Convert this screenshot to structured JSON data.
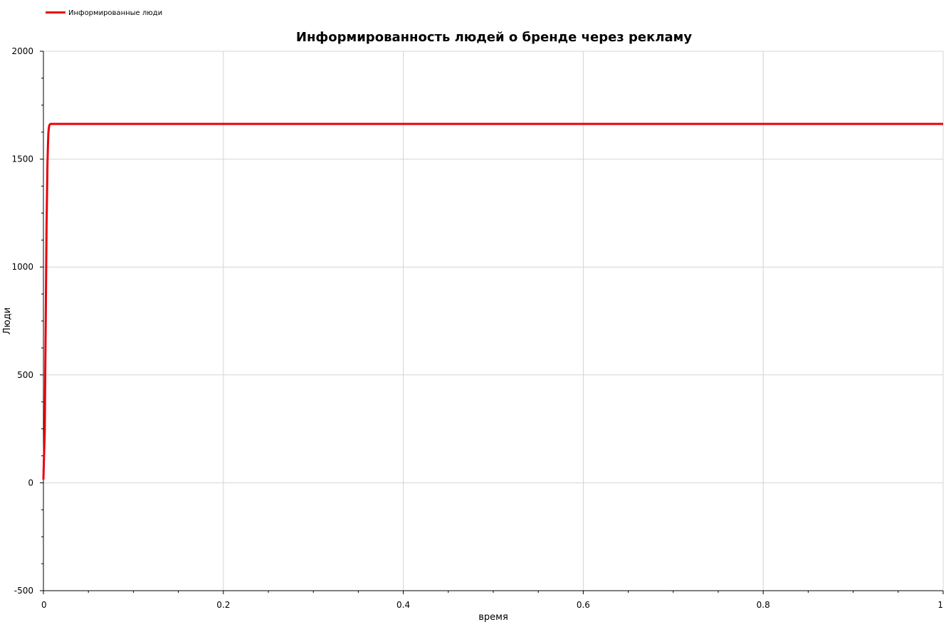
{
  "chart_data": {
    "type": "line",
    "title": "Информированность людей о бренде через рекламу",
    "xlabel": "время",
    "ylabel": "Люди",
    "xlim": [
      0,
      1
    ],
    "ylim": [
      -500,
      2000
    ],
    "grid": true,
    "legend_position": "top-left",
    "x_ticks": [
      0,
      0.2,
      0.4,
      0.6,
      0.8,
      1
    ],
    "x_tick_labels": [
      "0",
      "0.2",
      "0.4",
      "0.6",
      "0.8",
      "1"
    ],
    "y_ticks": [
      -500,
      0,
      500,
      1000,
      1500,
      2000
    ],
    "y_tick_labels": [
      "-500",
      "0",
      "500",
      "1000",
      "1500",
      "2000"
    ],
    "series": [
      {
        "name": "Информированные люди",
        "color": "#e8000b",
        "x": [
          0,
          0.0005,
          0.001,
          0.0015,
          0.002,
          0.0025,
          0.003,
          0.0035,
          0.004,
          0.0045,
          0.005,
          0.0055,
          0.006,
          0.0065,
          0.007,
          0.0075,
          0.008,
          0.009,
          0.01,
          0.02,
          0.1,
          0.2,
          0.4,
          0.6,
          0.8,
          1.0
        ],
        "y": [
          15,
          100,
          170,
          240,
          500,
          720,
          960,
          1200,
          1340,
          1480,
          1560,
          1620,
          1645,
          1655,
          1660,
          1662,
          1663,
          1663,
          1663,
          1663,
          1663,
          1663,
          1663,
          1663,
          1663,
          1663
        ]
      }
    ]
  }
}
